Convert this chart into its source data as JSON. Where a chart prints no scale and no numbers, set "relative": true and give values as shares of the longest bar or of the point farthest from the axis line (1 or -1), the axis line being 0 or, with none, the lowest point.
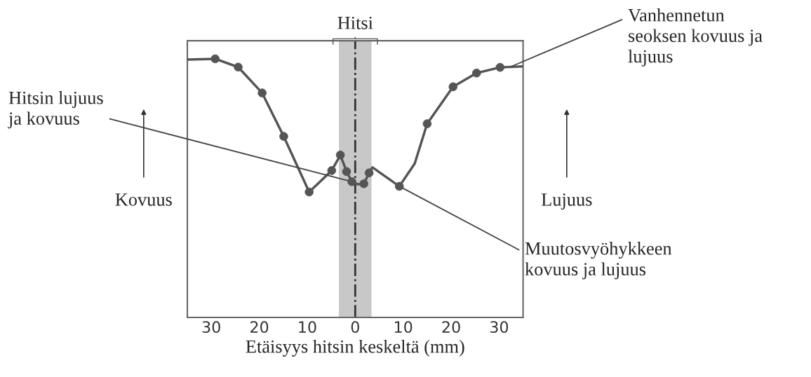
{
  "chart_data": {
    "type": "line",
    "relative": true,
    "xlabel": "Etäisyys hitsin keskeltä (mm)",
    "ylabel": "Kovuus",
    "y2label": "Lujuus",
    "xlim": [
      -35,
      35
    ],
    "xticks": [
      {
        "value": -30,
        "label": "30"
      },
      {
        "value": -20,
        "label": "20"
      },
      {
        "value": -10,
        "label": "10"
      },
      0,
      10,
      20,
      30
    ],
    "series": [
      {
        "color": "#555555",
        "marker": "none",
        "x": [
          -35,
          -29.2,
          -24.4,
          -19.4,
          -14.9,
          -9.6,
          -4.9,
          -3.1,
          -1.8,
          -0.7,
          0.5,
          1.8,
          2.9,
          3.6,
          9.2,
          12.4,
          15.0,
          20.4,
          25.3,
          30.2,
          35
        ],
        "values": [
          0.997,
          1.0,
          0.968,
          0.868,
          0.7,
          0.485,
          0.568,
          0.628,
          0.564,
          0.525,
          0.515,
          0.517,
          0.559,
          0.58,
          0.507,
          0.595,
          0.749,
          0.892,
          0.945,
          0.967,
          0.971
        ]
      },
      {
        "type": "scatter",
        "color": "#555555",
        "marker": "circle",
        "x": [
          -29.2,
          -24.4,
          -19.4,
          -14.9,
          -9.6,
          -4.9,
          -3.1,
          -1.8,
          -0.7,
          1.8,
          2.9,
          9.2,
          15.0,
          20.4,
          25.3,
          30.2
        ],
        "values": [
          1.0,
          0.968,
          0.868,
          0.7,
          0.485,
          0.568,
          0.628,
          0.564,
          0.525,
          0.517,
          0.559,
          0.507,
          0.749,
          0.892,
          0.945,
          0.967
        ]
      }
    ],
    "bands": [
      {
        "axis": "x",
        "from": -3.4,
        "to": 3.4,
        "label": "Hitsi",
        "color": "#c8c8c8"
      }
    ],
    "ref_lines": [
      {
        "axis": "x",
        "value": 0,
        "color": "#333333",
        "line_style": "dashed"
      }
    ],
    "annotations": [
      {
        "text": "Vanhennetun\nseoksen kovuus ja\nlujuus",
        "x": 32.5,
        "y": 0.97
      },
      {
        "text": "Hitsin lujuus\nja kovuus",
        "x": -0.7,
        "y": 0.525
      },
      {
        "text": "Muutosvyöhykkeen\nkovuus ja lujuus",
        "x": 9.2,
        "y": 0.507
      }
    ],
    "grid": false
  }
}
